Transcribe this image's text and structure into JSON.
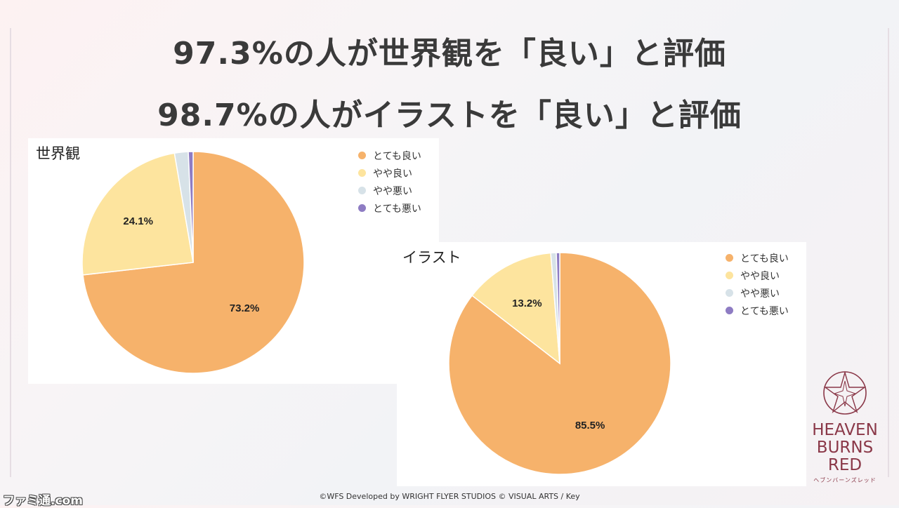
{
  "headline": {
    "line1": "97.3%の人が世界観を「良い」と評価",
    "line2": "98.7%の人がイラストを「良い」と評価"
  },
  "chart_data": [
    {
      "type": "pie",
      "title": "世界観",
      "categories": [
        "とても良い",
        "やや良い",
        "やや悪い",
        "とても悪い"
      ],
      "values": [
        73.2,
        24.1,
        2.0,
        0.7
      ],
      "data_labels": [
        "73.2%",
        "24.1%",
        "",
        ""
      ],
      "colors": [
        "#f6b26b",
        "#fde49e",
        "#d7e2e8",
        "#8e7cc3"
      ],
      "legend": "top-right"
    },
    {
      "type": "pie",
      "title": "イラスト",
      "categories": [
        "とても良い",
        "やや良い",
        "やや悪い",
        "とても悪い"
      ],
      "values": [
        85.5,
        13.2,
        0.8,
        0.5
      ],
      "data_labels": [
        "85.5%",
        "13.2%",
        "",
        ""
      ],
      "colors": [
        "#f6b26b",
        "#fde49e",
        "#d7e2e8",
        "#8e7cc3"
      ],
      "legend": "top-right"
    }
  ],
  "logo": {
    "line1": "HEAVEN",
    "line2": "BURNS",
    "line3": "RED",
    "sub": "ヘブンバーンズレッド"
  },
  "footer": "©WFS Developed by WRIGHT FLYER STUDIOS  © VISUAL ARTS / Key",
  "watermark": "ファミ通.com"
}
